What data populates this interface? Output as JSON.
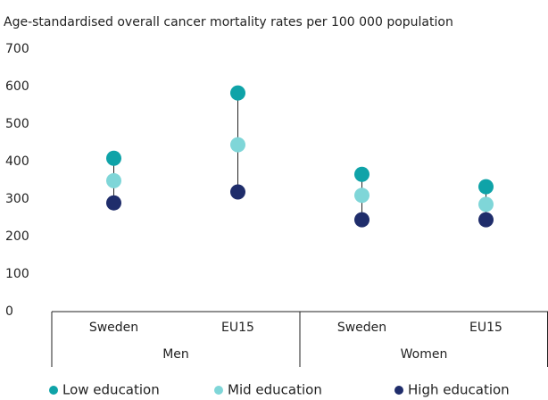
{
  "chart_data": {
    "type": "dot",
    "title": "Age-standardised overall cancer mortality rates per 100 000 population",
    "categories": [
      "Sweden",
      "EU15",
      "Sweden",
      "EU15"
    ],
    "groups": [
      "Men",
      "Women"
    ],
    "series": [
      {
        "name": "Low education",
        "color": "#0fa3a8",
        "values": [
          409,
          583,
          366,
          333
        ]
      },
      {
        "name": "Mid education",
        "color": "#7fd6d8",
        "values": [
          349,
          445,
          310,
          286
        ]
      },
      {
        "name": "High education",
        "color": "#1f2d6b",
        "values": [
          290,
          319,
          245,
          245
        ]
      }
    ],
    "ylim": [
      0,
      700
    ],
    "yticks": [
      0,
      100,
      200,
      300,
      400,
      500,
      600,
      700
    ],
    "grid": false,
    "legend": "bottom"
  }
}
